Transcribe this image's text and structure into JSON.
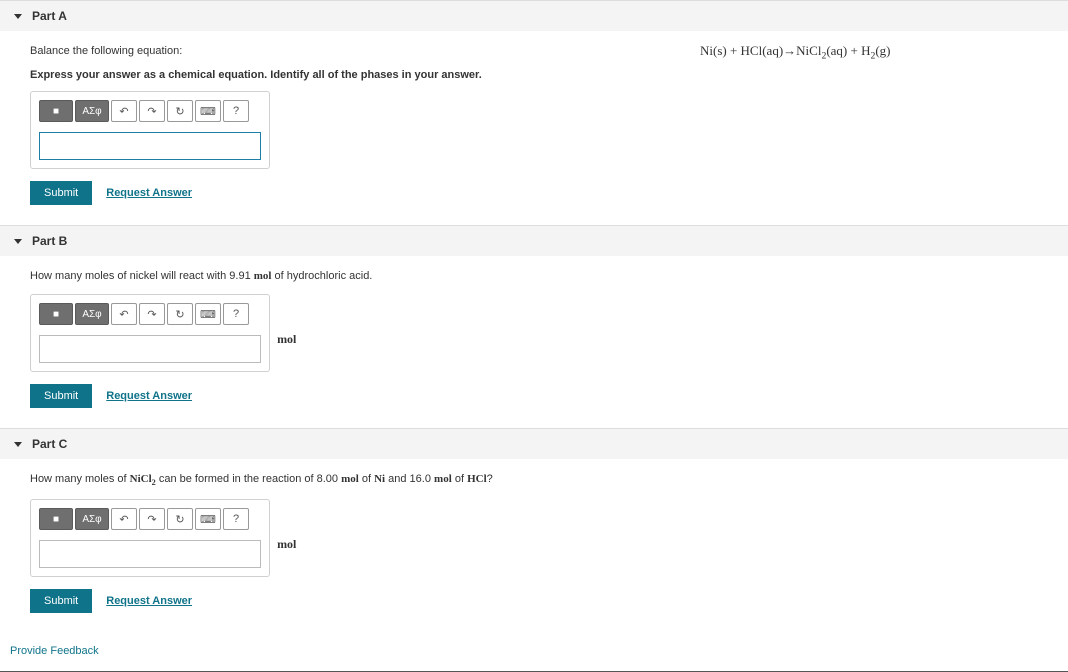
{
  "toolbar_labels": {
    "templates": "■",
    "sigma": "ΑΣφ",
    "undo": "↶",
    "redo": "↷",
    "reset": "↻",
    "keyboard": "⌨",
    "help": "?"
  },
  "submit_label": "Submit",
  "request_label": "Request Answer",
  "parts": [
    {
      "title": "Part A",
      "prompt_plain": "Balance the following equation:",
      "instruction": "Express your answer as a chemical equation. Identify all of the phases in your answer.",
      "equation_html": "Ni(s) + HCl(aq)→NiCl<sub>2</sub>(aq) + H<sub>2</sub>(g)",
      "input_value": "",
      "unit_suffix": "",
      "input_active": true
    },
    {
      "title": "Part B",
      "prompt_html": "How many moles of nickel will react with 9.91 <span class='serif b'>mol</span> of hydrochloric acid.",
      "input_value": "",
      "unit_suffix": "mol",
      "input_active": false
    },
    {
      "title": "Part C",
      "prompt_html": "How many moles of <span class='serif b'>NiCl<sub>2</sub></span> can be formed in the reaction of 8.00 <span class='serif b'>mol</span> of <span class='serif b'>Ni</span> and 16.0 <span class='serif b'>mol</span> of <span class='serif b'>HCl</span>?",
      "input_value": "",
      "unit_suffix": "mol",
      "input_active": false
    }
  ],
  "feedback_label": "Provide Feedback"
}
